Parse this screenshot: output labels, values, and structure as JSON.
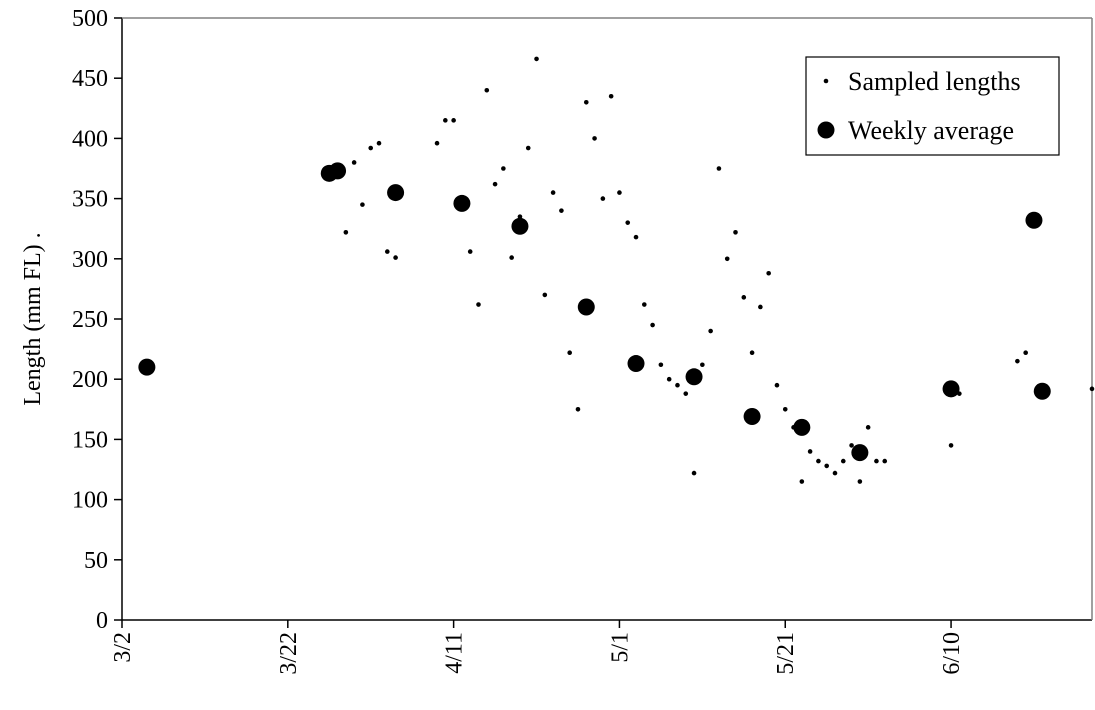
{
  "chart_data": {
    "type": "scatter",
    "title": "",
    "xlabel": "",
    "ylabel": "Length (mm FL) .",
    "ylim": [
      0,
      500
    ],
    "yticks": [
      "0",
      "50",
      "100",
      "150",
      "200",
      "250",
      "300",
      "350",
      "400",
      "450",
      "500"
    ],
    "xlim": [
      "3/2",
      "6/27"
    ],
    "xticks": [
      "3/2",
      "3/22",
      "4/11",
      "5/1",
      "5/21",
      "6/10"
    ],
    "grid": false,
    "legend_position": "top-right",
    "series": [
      {
        "name": "Sampled lengths",
        "marker": "small-dot",
        "points": [
          [
            "3/29",
            322
          ],
          [
            "3/30",
            380
          ],
          [
            "3/31",
            345
          ],
          [
            "4/1",
            392
          ],
          [
            "4/2",
            396
          ],
          [
            "4/3",
            306
          ],
          [
            "4/4",
            301
          ],
          [
            "4/9",
            396
          ],
          [
            "4/10",
            415
          ],
          [
            "4/11",
            415
          ],
          [
            "4/12",
            345
          ],
          [
            "4/13",
            306
          ],
          [
            "4/14",
            262
          ],
          [
            "4/15",
            440
          ],
          [
            "4/16",
            362
          ],
          [
            "4/17",
            375
          ],
          [
            "4/18",
            301
          ],
          [
            "4/19",
            335
          ],
          [
            "4/20",
            392
          ],
          [
            "4/21",
            466
          ],
          [
            "4/22",
            270
          ],
          [
            "4/23",
            355
          ],
          [
            "4/24",
            340
          ],
          [
            "4/25",
            222
          ],
          [
            "4/26",
            175
          ],
          [
            "4/27",
            430
          ],
          [
            "4/28",
            400
          ],
          [
            "4/29",
            350
          ],
          [
            "4/30",
            435
          ],
          [
            "5/1",
            355
          ],
          [
            "5/2",
            330
          ],
          [
            "5/3",
            318
          ],
          [
            "5/4",
            262
          ],
          [
            "5/5",
            245
          ],
          [
            "5/6",
            212
          ],
          [
            "5/7",
            200
          ],
          [
            "5/8",
            195
          ],
          [
            "5/9",
            188
          ],
          [
            "5/10",
            122
          ],
          [
            "5/11",
            212
          ],
          [
            "5/12",
            240
          ],
          [
            "5/13",
            375
          ],
          [
            "5/14",
            300
          ],
          [
            "5/15",
            322
          ],
          [
            "5/16",
            268
          ],
          [
            "5/17",
            222
          ],
          [
            "5/18",
            260
          ],
          [
            "5/19",
            288
          ],
          [
            "5/20",
            195
          ],
          [
            "5/21",
            175
          ],
          [
            "5/22",
            160
          ],
          [
            "5/23",
            115
          ],
          [
            "5/24",
            140
          ],
          [
            "5/25",
            132
          ],
          [
            "5/26",
            128
          ],
          [
            "5/27",
            122
          ],
          [
            "5/28",
            132
          ],
          [
            "5/29",
            145
          ],
          [
            "5/30",
            115
          ],
          [
            "5/31",
            160
          ],
          [
            "6/1",
            132
          ],
          [
            "6/2",
            132
          ],
          [
            "6/10",
            145
          ],
          [
            "6/11",
            188
          ],
          [
            "6/18",
            215
          ],
          [
            "6/19",
            222
          ],
          [
            "6/27",
            192
          ]
        ]
      },
      {
        "name": "Weekly average",
        "marker": "large-dot",
        "points": [
          [
            "3/5",
            210
          ],
          [
            "3/27",
            371
          ],
          [
            "3/28",
            373
          ],
          [
            "4/4",
            355
          ],
          [
            "4/12",
            346
          ],
          [
            "4/19",
            327
          ],
          [
            "4/27",
            260
          ],
          [
            "5/3",
            213
          ],
          [
            "5/10",
            202
          ],
          [
            "5/17",
            169
          ],
          [
            "5/23",
            160
          ],
          [
            "5/30",
            139
          ],
          [
            "6/10",
            192
          ],
          [
            "6/20",
            332
          ],
          [
            "6/21",
            190
          ]
        ]
      }
    ]
  },
  "legend": {
    "items": [
      {
        "label": "Sampled lengths"
      },
      {
        "label": "Weekly average"
      }
    ]
  }
}
